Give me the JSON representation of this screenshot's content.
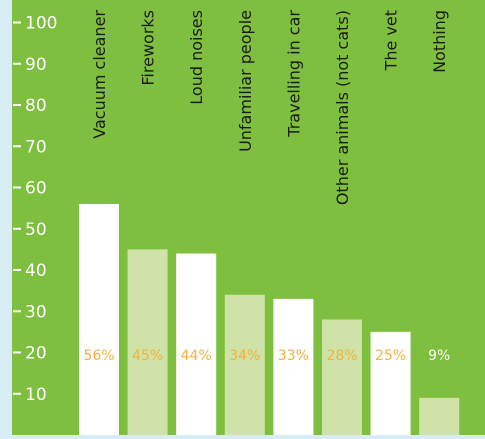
{
  "chart_data": {
    "type": "bar",
    "title": "",
    "xlabel": "",
    "ylabel": "",
    "ylim": [
      0,
      100
    ],
    "yticks": [
      10,
      20,
      30,
      40,
      50,
      60,
      70,
      80,
      90,
      100
    ],
    "categories": [
      "Vacuum cleaner",
      "Fireworks",
      "Loud noises",
      "Unfamiliar people",
      "Travelling in car",
      "Other animals (not cats)",
      "The vet",
      "Nothing"
    ],
    "values": [
      56,
      45,
      44,
      34,
      33,
      28,
      25,
      9
    ],
    "value_labels": [
      "56%",
      "45%",
      "44%",
      "34%",
      "33%",
      "28%",
      "25%",
      "9%"
    ],
    "grid": false,
    "legend": "none"
  },
  "colors": {
    "background": "#d8ecf6",
    "plot_area": "#7fbf3f",
    "bar_primary": "#ffffff",
    "bar_alternate": "#cfe3a8",
    "axis_text": "#ffffff",
    "category_text": "#1a1a1a",
    "value_label_text": "#f4b23a",
    "value_label_text_dark_bar": "#ffffff"
  }
}
